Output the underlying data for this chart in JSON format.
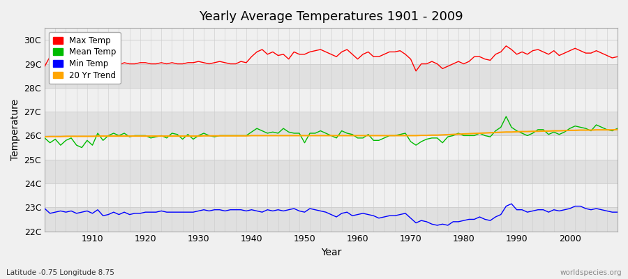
{
  "title": "Yearly Average Temperatures 1901 - 2009",
  "xlabel": "Year",
  "ylabel": "Temperature",
  "footer_left": "Latitude -0.75 Longitude 8.75",
  "footer_right": "worldspecies.org",
  "ylim": [
    22,
    30.5
  ],
  "yticks": [
    22,
    23,
    24,
    25,
    26,
    27,
    28,
    29,
    30
  ],
  "ytick_labels": [
    "22C",
    "23C",
    "24C",
    "25C",
    "26C",
    "27C",
    "28C",
    "29C",
    "30C"
  ],
  "xlim": [
    1901,
    2009
  ],
  "xticks": [
    1910,
    1920,
    1930,
    1940,
    1950,
    1960,
    1970,
    1980,
    1990,
    2000
  ],
  "bg_color": "#f0f0f0",
  "plot_bg_color_light": "#f0f0f0",
  "plot_bg_color_dark": "#e0e0e0",
  "grid_color": "#cccccc",
  "line_colors": {
    "max": "#ff0000",
    "mean": "#00bb00",
    "min": "#0000ff",
    "trend": "#ffa500"
  },
  "legend_labels": [
    "Max Temp",
    "Mean Temp",
    "Min Temp",
    "20 Yr Trend"
  ],
  "years": [
    1901,
    1902,
    1903,
    1904,
    1905,
    1906,
    1907,
    1908,
    1909,
    1910,
    1911,
    1912,
    1913,
    1914,
    1915,
    1916,
    1917,
    1918,
    1919,
    1920,
    1921,
    1922,
    1923,
    1924,
    1925,
    1926,
    1927,
    1928,
    1929,
    1930,
    1931,
    1932,
    1933,
    1934,
    1935,
    1936,
    1937,
    1938,
    1939,
    1940,
    1941,
    1942,
    1943,
    1944,
    1945,
    1946,
    1947,
    1948,
    1949,
    1950,
    1951,
    1952,
    1953,
    1954,
    1955,
    1956,
    1957,
    1958,
    1959,
    1960,
    1961,
    1962,
    1963,
    1964,
    1965,
    1966,
    1967,
    1968,
    1969,
    1970,
    1971,
    1972,
    1973,
    1974,
    1975,
    1976,
    1977,
    1978,
    1979,
    1980,
    1981,
    1982,
    1983,
    1984,
    1985,
    1986,
    1987,
    1988,
    1989,
    1990,
    1991,
    1992,
    1993,
    1994,
    1995,
    1996,
    1997,
    1998,
    1999,
    2000,
    2001,
    2002,
    2003,
    2004,
    2005,
    2006,
    2007,
    2008,
    2009
  ],
  "max_temp": [
    28.9,
    29.3,
    29.2,
    29.1,
    29.15,
    29.05,
    29.1,
    29.3,
    29.15,
    29.05,
    29.0,
    28.95,
    29.05,
    29.0,
    28.95,
    29.05,
    29.0,
    29.0,
    29.05,
    29.05,
    29.0,
    29.0,
    29.05,
    29.0,
    29.05,
    29.0,
    29.0,
    29.05,
    29.05,
    29.1,
    29.05,
    29.0,
    29.05,
    29.1,
    29.05,
    29.0,
    29.0,
    29.1,
    29.05,
    29.3,
    29.5,
    29.6,
    29.4,
    29.5,
    29.35,
    29.4,
    29.2,
    29.5,
    29.4,
    29.4,
    29.5,
    29.55,
    29.6,
    29.5,
    29.4,
    29.3,
    29.5,
    29.6,
    29.4,
    29.2,
    29.4,
    29.5,
    29.3,
    29.3,
    29.4,
    29.5,
    29.5,
    29.55,
    29.4,
    29.2,
    28.7,
    29.0,
    29.0,
    29.1,
    29.0,
    28.8,
    28.9,
    29.0,
    29.1,
    29.0,
    29.1,
    29.3,
    29.3,
    29.2,
    29.15,
    29.4,
    29.5,
    29.75,
    29.6,
    29.4,
    29.5,
    29.4,
    29.55,
    29.6,
    29.5,
    29.4,
    29.55,
    29.35,
    29.45,
    29.55,
    29.65,
    29.55,
    29.45,
    29.45,
    29.55,
    29.45,
    29.35,
    29.25,
    29.3
  ],
  "mean_temp": [
    25.9,
    25.7,
    25.85,
    25.6,
    25.8,
    25.9,
    25.6,
    25.5,
    25.8,
    25.6,
    26.1,
    25.8,
    26.0,
    26.1,
    26.0,
    26.1,
    25.95,
    26.0,
    26.0,
    26.0,
    25.9,
    25.95,
    26.0,
    25.9,
    26.1,
    26.05,
    25.85,
    26.05,
    25.85,
    26.0,
    26.1,
    26.0,
    25.95,
    26.0,
    26.0,
    26.0,
    26.0,
    26.0,
    26.0,
    26.15,
    26.3,
    26.2,
    26.1,
    26.15,
    26.1,
    26.3,
    26.15,
    26.1,
    26.1,
    25.7,
    26.1,
    26.1,
    26.2,
    26.1,
    26.0,
    25.9,
    26.2,
    26.1,
    26.05,
    25.9,
    25.9,
    26.05,
    25.8,
    25.8,
    25.9,
    26.0,
    26.0,
    26.05,
    26.1,
    25.75,
    25.6,
    25.75,
    25.85,
    25.9,
    25.9,
    25.7,
    25.95,
    26.0,
    26.1,
    26.0,
    26.0,
    26.0,
    26.1,
    26.0,
    25.95,
    26.2,
    26.35,
    26.8,
    26.35,
    26.2,
    26.1,
    26.0,
    26.1,
    26.25,
    26.25,
    26.05,
    26.15,
    26.05,
    26.15,
    26.3,
    26.4,
    26.35,
    26.3,
    26.2,
    26.45,
    26.35,
    26.25,
    26.2,
    26.3
  ],
  "min_temp": [
    22.95,
    22.75,
    22.8,
    22.85,
    22.8,
    22.85,
    22.75,
    22.8,
    22.85,
    22.75,
    22.9,
    22.65,
    22.7,
    22.8,
    22.7,
    22.8,
    22.7,
    22.75,
    22.75,
    22.8,
    22.8,
    22.8,
    22.85,
    22.8,
    22.8,
    22.8,
    22.8,
    22.8,
    22.8,
    22.85,
    22.9,
    22.85,
    22.9,
    22.9,
    22.85,
    22.9,
    22.9,
    22.9,
    22.85,
    22.9,
    22.85,
    22.8,
    22.9,
    22.85,
    22.9,
    22.85,
    22.9,
    22.95,
    22.85,
    22.8,
    22.95,
    22.9,
    22.85,
    22.8,
    22.7,
    22.6,
    22.75,
    22.8,
    22.65,
    22.7,
    22.75,
    22.7,
    22.65,
    22.55,
    22.6,
    22.65,
    22.65,
    22.7,
    22.75,
    22.55,
    22.35,
    22.45,
    22.4,
    22.3,
    22.25,
    22.3,
    22.25,
    22.4,
    22.4,
    22.45,
    22.5,
    22.5,
    22.6,
    22.5,
    22.45,
    22.6,
    22.7,
    23.05,
    23.15,
    22.9,
    22.9,
    22.8,
    22.85,
    22.9,
    22.9,
    22.8,
    22.9,
    22.85,
    22.9,
    22.95,
    23.05,
    23.05,
    22.95,
    22.9,
    22.95,
    22.9,
    22.85,
    22.8,
    22.8
  ],
  "trend": [
    25.95,
    25.96,
    25.96,
    25.96,
    25.97,
    25.97,
    25.97,
    25.97,
    25.97,
    25.97,
    25.98,
    25.98,
    25.98,
    25.98,
    25.98,
    25.98,
    25.98,
    25.98,
    25.98,
    25.98,
    25.98,
    25.98,
    25.98,
    25.98,
    25.98,
    25.98,
    25.98,
    25.98,
    25.98,
    25.98,
    25.99,
    25.99,
    25.99,
    25.99,
    25.99,
    25.99,
    25.99,
    25.99,
    25.99,
    26.0,
    26.0,
    26.0,
    26.0,
    26.0,
    26.0,
    26.0,
    26.0,
    26.0,
    26.0,
    26.0,
    26.0,
    26.0,
    26.0,
    26.0,
    26.0,
    26.0,
    26.0,
    26.0,
    26.0,
    26.0,
    26.0,
    26.0,
    26.0,
    26.0,
    26.0,
    26.0,
    26.0,
    26.0,
    26.0,
    26.0,
    26.0,
    26.01,
    26.01,
    26.02,
    26.02,
    26.03,
    26.04,
    26.05,
    26.06,
    26.07,
    26.08,
    26.09,
    26.1,
    26.11,
    26.12,
    26.13,
    26.14,
    26.15,
    26.15,
    26.16,
    26.17,
    26.17,
    26.18,
    26.18,
    26.19,
    26.19,
    26.2,
    26.2,
    26.21,
    26.22,
    26.22,
    26.23,
    26.23,
    26.23,
    26.24,
    26.24,
    26.24,
    26.24,
    26.25
  ]
}
